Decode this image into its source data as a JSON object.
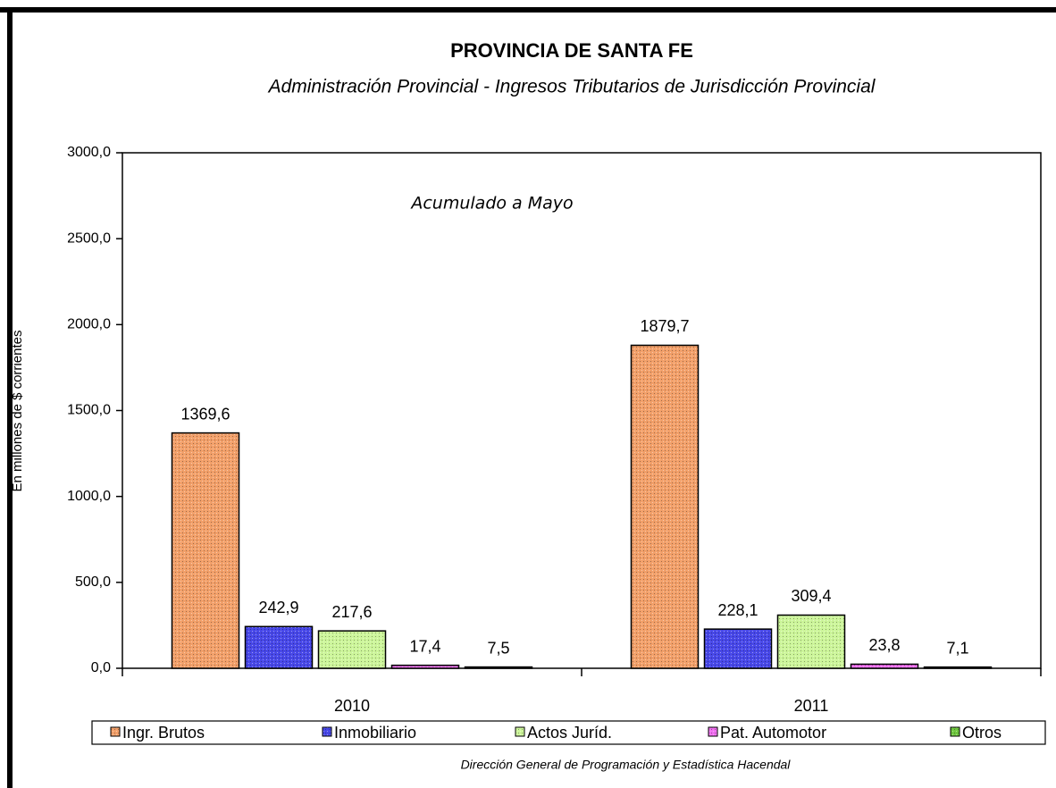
{
  "chart_data": {
    "type": "bar",
    "title": "PROVINCIA DE SANTA FE",
    "subtitle": "Administración Provincial - Ingresos Tributarios de Jurisdicción Provincial",
    "annotation": "Acumulado a Mayo",
    "y_label": "En millones de $ corrientes",
    "footer": "Dirección General de Programación y Estadística Hacendal",
    "categories": [
      "2010",
      "2011"
    ],
    "series": [
      {
        "name": "Ingr. Brutos",
        "color": "#f2a06a",
        "values": [
          1369.6,
          1879.7
        ],
        "value_labels": [
          "1369,6",
          "1879,7"
        ]
      },
      {
        "name": "Inmobiliario",
        "color": "#4848e8",
        "values": [
          242.9,
          228.1
        ],
        "value_labels": [
          "242,9",
          "228,1"
        ]
      },
      {
        "name": "Actos Juríd.",
        "color": "#ccf59a",
        "values": [
          217.6,
          309.4
        ],
        "value_labels": [
          "217,6",
          "309,4"
        ]
      },
      {
        "name": "Pat. Automotor",
        "color": "#f070f0",
        "values": [
          17.4,
          23.8
        ],
        "value_labels": [
          "17,4",
          "23,8"
        ]
      },
      {
        "name": "Otros",
        "color": "#70c840",
        "values": [
          7.5,
          7.1
        ],
        "value_labels": [
          "7,5",
          "7,1"
        ]
      }
    ],
    "ylim": [
      0,
      3000
    ],
    "yticks": [
      {
        "value": 0,
        "label": "0,0"
      },
      {
        "value": 500,
        "label": "500,0"
      },
      {
        "value": 1000,
        "label": "1000,0"
      },
      {
        "value": 1500,
        "label": "1500,0"
      },
      {
        "value": 2000,
        "label": "2000,0"
      },
      {
        "value": 2500,
        "label": "2500,0"
      },
      {
        "value": 3000,
        "label": "3000,0"
      }
    ],
    "grid": false,
    "legend": "bottom"
  }
}
